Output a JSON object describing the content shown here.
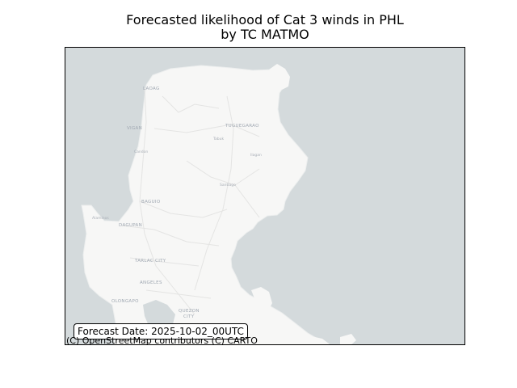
{
  "title": {
    "line1": "Forecasted likelihood of Cat 3 winds in PHL",
    "line2": "by TC MATMO"
  },
  "map": {
    "basemap": "CartoDB light (OpenStreetMap)",
    "colors": {
      "water": "#d4dadc",
      "land": "#f7f7f6",
      "road": "#e5e5e4",
      "place_label": "#a0a8b2"
    },
    "places": {
      "laoag": "LAOAG",
      "vigan": "VIGAN",
      "tuguegarao": "TUGUEGARAO",
      "tabuk": "Tabuk",
      "candon": "Candon",
      "ilagan": "Ilagan",
      "santiago": "Santiago",
      "baguio": "BAGUIO",
      "alaminos": "Alaminos",
      "dagupan": "DAGUPAN",
      "tarlac": "TARLAC CITY",
      "angeles": "ANGELES",
      "olongapo": "OLONGAPO",
      "quezon_1": "QUEZON",
      "quezon_2": "CITY"
    }
  },
  "forecast_box": {
    "text": "Forecast Date: 2025-10-02_00UTC"
  },
  "attribution": "(C) OpenStreetMap contributors (C) CARTO"
}
